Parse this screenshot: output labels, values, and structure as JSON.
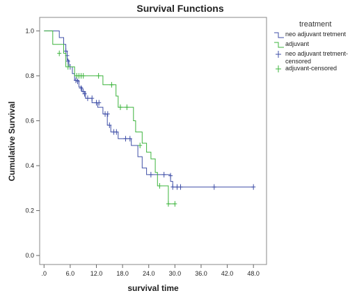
{
  "chart_data": {
    "type": "line",
    "title": "Survival Functions",
    "xlabel": "survival time",
    "ylabel": "Cumulative Survival",
    "xlim": [
      -1,
      51
    ],
    "ylim": [
      -0.04,
      1.06
    ],
    "x_ticks": [
      0,
      6,
      12,
      18,
      24,
      30,
      36,
      42,
      48
    ],
    "x_tick_labels": [
      ".0",
      "6.0",
      "12.0",
      "18.0",
      "24.0",
      "30.0",
      "36.0",
      "42.0",
      "48.0"
    ],
    "y_ticks": [
      0,
      0.2,
      0.4,
      0.6,
      0.8,
      1.0
    ],
    "y_tick_labels": [
      "0.0",
      "0.2",
      "0.4",
      "0.6",
      "0.8",
      "1.0"
    ],
    "grid": false,
    "legend": {
      "title": "treatment",
      "placement": "right",
      "entries": [
        {
          "label": "neo adjuvant tretment",
          "symbol": "step",
          "color": "#3F4FA7"
        },
        {
          "label": "adjuvant",
          "symbol": "step",
          "color": "#3CB43C"
        },
        {
          "label": "neo adjuvant tretment-censored",
          "symbol": "plus",
          "color": "#3F4FA7"
        },
        {
          "label": "adjuvant-censored",
          "symbol": "plus",
          "color": "#3CB43C"
        }
      ]
    },
    "series": [
      {
        "color": "#3F4FA7",
        "steps": [
          [
            0,
            1.0
          ],
          [
            2.5,
            1.0
          ],
          [
            3.5,
            0.97
          ],
          [
            4.5,
            0.94
          ],
          [
            5.0,
            0.91
          ],
          [
            5.3,
            0.87
          ],
          [
            5.7,
            0.84
          ],
          [
            6.5,
            0.81
          ],
          [
            7.0,
            0.78
          ],
          [
            8.0,
            0.75
          ],
          [
            8.7,
            0.73
          ],
          [
            9.5,
            0.7
          ],
          [
            11.0,
            0.68
          ],
          [
            12.3,
            0.66
          ],
          [
            13.5,
            0.63
          ],
          [
            14.5,
            0.58
          ],
          [
            15.3,
            0.55
          ],
          [
            17.0,
            0.52
          ],
          [
            20.0,
            0.49
          ],
          [
            21.5,
            0.44
          ],
          [
            22.5,
            0.39
          ],
          [
            23.5,
            0.36
          ],
          [
            29.0,
            0.33
          ],
          [
            29.5,
            0.305
          ],
          [
            48.0,
            0.305
          ]
        ],
        "censored": [
          [
            5.0,
            0.91
          ],
          [
            5.3,
            0.89
          ],
          [
            5.5,
            0.865
          ],
          [
            6.0,
            0.84
          ],
          [
            7.3,
            0.78
          ],
          [
            7.7,
            0.775
          ],
          [
            8.5,
            0.745
          ],
          [
            9.0,
            0.73
          ],
          [
            9.3,
            0.72
          ],
          [
            10.0,
            0.7
          ],
          [
            11.0,
            0.7
          ],
          [
            12.0,
            0.68
          ],
          [
            12.6,
            0.68
          ],
          [
            14.0,
            0.63
          ],
          [
            14.6,
            0.63
          ],
          [
            15.0,
            0.58
          ],
          [
            16.0,
            0.55
          ],
          [
            16.6,
            0.55
          ],
          [
            18.7,
            0.52
          ],
          [
            19.7,
            0.52
          ],
          [
            24.5,
            0.36
          ],
          [
            27.5,
            0.36
          ],
          [
            29.0,
            0.355
          ],
          [
            29.5,
            0.305
          ],
          [
            30.5,
            0.305
          ],
          [
            31.3,
            0.305
          ],
          [
            39.0,
            0.305
          ],
          [
            48.0,
            0.305
          ]
        ]
      },
      {
        "color": "#3CB43C",
        "steps": [
          [
            0,
            1.0
          ],
          [
            1.0,
            1.0
          ],
          [
            2.0,
            0.94
          ],
          [
            4.5,
            0.9
          ],
          [
            5.0,
            0.84
          ],
          [
            6.5,
            0.84
          ],
          [
            7.0,
            0.8
          ],
          [
            13.0,
            0.8
          ],
          [
            13.5,
            0.76
          ],
          [
            16.0,
            0.76
          ],
          [
            16.5,
            0.71
          ],
          [
            17.0,
            0.66
          ],
          [
            20.5,
            0.6
          ],
          [
            21.0,
            0.55
          ],
          [
            22.5,
            0.5
          ],
          [
            23.5,
            0.46
          ],
          [
            24.5,
            0.43
          ],
          [
            25.5,
            0.37
          ],
          [
            26.0,
            0.31
          ],
          [
            28.0,
            0.31
          ],
          [
            28.5,
            0.23
          ],
          [
            30.0,
            0.23
          ]
        ],
        "censored": [
          [
            3.5,
            0.9
          ],
          [
            5.5,
            0.84
          ],
          [
            7.5,
            0.8
          ],
          [
            8.0,
            0.8
          ],
          [
            8.5,
            0.8
          ],
          [
            9.0,
            0.8
          ],
          [
            12.5,
            0.8
          ],
          [
            15.5,
            0.76
          ],
          [
            17.5,
            0.66
          ],
          [
            19.0,
            0.66
          ],
          [
            22.0,
            0.49
          ],
          [
            26.5,
            0.31
          ],
          [
            28.5,
            0.23
          ],
          [
            30.0,
            0.23
          ]
        ]
      }
    ]
  }
}
